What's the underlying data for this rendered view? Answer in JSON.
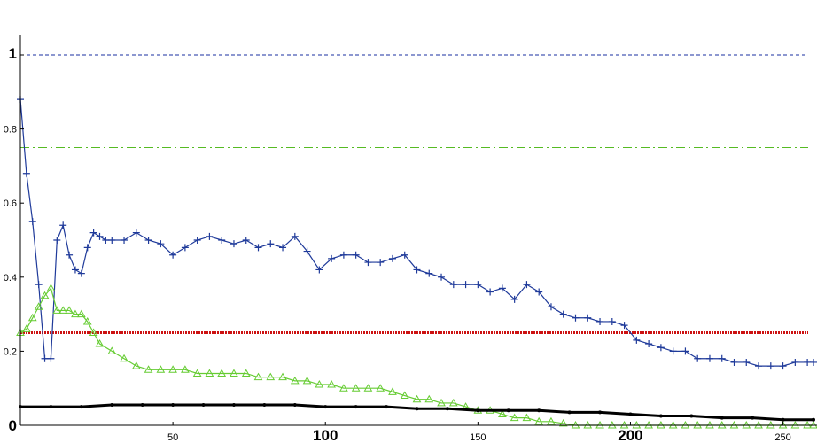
{
  "chart_data": {
    "type": "line",
    "title": "",
    "xlabel": "",
    "ylabel": "",
    "xlim": [
      0,
      260
    ],
    "ylim": [
      0,
      1.05
    ],
    "grid": false,
    "legend": "none",
    "x_ticks": [
      {
        "value": 50,
        "label": "50",
        "emphasis": false
      },
      {
        "value": 100,
        "label": "100",
        "emphasis": true
      },
      {
        "value": 150,
        "label": "150",
        "emphasis": false
      },
      {
        "value": 200,
        "label": "200",
        "emphasis": true
      },
      {
        "value": 250,
        "label": "250",
        "emphasis": false
      }
    ],
    "y_ticks": [
      {
        "value": 0,
        "label": "0",
        "emphasis": true
      },
      {
        "value": 0.2,
        "label": "0.2",
        "emphasis": false
      },
      {
        "value": 0.4,
        "label": "0.4",
        "emphasis": false
      },
      {
        "value": 0.6,
        "label": "0.6",
        "emphasis": false
      },
      {
        "value": 0.8,
        "label": "0.8",
        "emphasis": false
      },
      {
        "value": 1,
        "label": "1",
        "emphasis": true
      }
    ],
    "reference_lines": [
      {
        "y": 1.0,
        "color": "#1a2fa0",
        "style": "dashed"
      },
      {
        "y": 0.75,
        "color": "#55bb22",
        "style": "dashdot"
      },
      {
        "y": 0.25,
        "color": "#cc1111",
        "style": "dotted"
      }
    ],
    "series": [
      {
        "color": "#1f3a9a",
        "marker": "plus",
        "x": [
          0,
          2,
          4,
          6,
          8,
          10,
          12,
          14,
          16,
          18,
          20,
          22,
          24,
          26,
          28,
          30,
          34,
          38,
          42,
          46,
          50,
          54,
          58,
          62,
          66,
          70,
          74,
          78,
          82,
          86,
          90,
          94,
          98,
          102,
          106,
          110,
          114,
          118,
          122,
          126,
          130,
          134,
          138,
          142,
          146,
          150,
          154,
          158,
          162,
          166,
          170,
          174,
          178,
          182,
          186,
          190,
          194,
          198,
          202,
          206,
          210,
          214,
          218,
          222,
          226,
          230,
          234,
          238,
          242,
          246,
          250,
          254,
          258,
          260
        ],
        "y": [
          0.88,
          0.68,
          0.55,
          0.38,
          0.18,
          0.18,
          0.5,
          0.54,
          0.46,
          0.42,
          0.41,
          0.48,
          0.52,
          0.51,
          0.5,
          0.5,
          0.5,
          0.52,
          0.5,
          0.49,
          0.46,
          0.48,
          0.5,
          0.51,
          0.5,
          0.49,
          0.5,
          0.48,
          0.49,
          0.48,
          0.51,
          0.47,
          0.42,
          0.45,
          0.46,
          0.46,
          0.44,
          0.44,
          0.45,
          0.46,
          0.42,
          0.41,
          0.4,
          0.38,
          0.38,
          0.38,
          0.36,
          0.37,
          0.34,
          0.38,
          0.36,
          0.32,
          0.3,
          0.29,
          0.29,
          0.28,
          0.28,
          0.27,
          0.23,
          0.22,
          0.21,
          0.2,
          0.2,
          0.18,
          0.18,
          0.18,
          0.17,
          0.17,
          0.16,
          0.16,
          0.16,
          0.17,
          0.17,
          0.17
        ]
      },
      {
        "color": "#66cc33",
        "marker": "triangle",
        "x": [
          0,
          2,
          4,
          6,
          8,
          10,
          12,
          14,
          16,
          18,
          20,
          22,
          24,
          26,
          30,
          34,
          38,
          42,
          46,
          50,
          54,
          58,
          62,
          66,
          70,
          74,
          78,
          82,
          86,
          90,
          94,
          98,
          102,
          106,
          110,
          114,
          118,
          122,
          126,
          130,
          134,
          138,
          142,
          146,
          150,
          154,
          158,
          162,
          166,
          170,
          174,
          178,
          182,
          186,
          190,
          194,
          198,
          202,
          206,
          210,
          214,
          218,
          222,
          226,
          230,
          234,
          238,
          242,
          246,
          250,
          254,
          258,
          260
        ],
        "y": [
          0.25,
          0.26,
          0.29,
          0.32,
          0.35,
          0.37,
          0.31,
          0.31,
          0.31,
          0.3,
          0.3,
          0.28,
          0.25,
          0.22,
          0.2,
          0.18,
          0.16,
          0.15,
          0.15,
          0.15,
          0.15,
          0.14,
          0.14,
          0.14,
          0.14,
          0.14,
          0.13,
          0.13,
          0.13,
          0.12,
          0.12,
          0.11,
          0.11,
          0.1,
          0.1,
          0.1,
          0.1,
          0.09,
          0.08,
          0.07,
          0.07,
          0.06,
          0.06,
          0.05,
          0.04,
          0.04,
          0.03,
          0.02,
          0.02,
          0.01,
          0.01,
          0.005,
          0.0,
          0.0,
          0.0,
          0.0,
          0.0,
          0.0,
          0.0,
          0.0,
          0.0,
          0.0,
          0.0,
          0.0,
          0.0,
          0.0,
          0.0,
          0.0,
          0.0,
          0.0,
          0.0,
          0.0,
          0.0
        ]
      },
      {
        "color": "#000000",
        "marker": "dot",
        "x": [
          0,
          10,
          20,
          30,
          40,
          50,
          60,
          70,
          80,
          90,
          100,
          110,
          120,
          130,
          140,
          150,
          160,
          170,
          180,
          190,
          200,
          210,
          220,
          230,
          240,
          250,
          260
        ],
        "y": [
          0.05,
          0.05,
          0.05,
          0.055,
          0.055,
          0.055,
          0.055,
          0.055,
          0.055,
          0.055,
          0.05,
          0.05,
          0.05,
          0.045,
          0.045,
          0.04,
          0.04,
          0.04,
          0.035,
          0.035,
          0.03,
          0.025,
          0.025,
          0.02,
          0.02,
          0.015,
          0.015
        ]
      }
    ]
  }
}
